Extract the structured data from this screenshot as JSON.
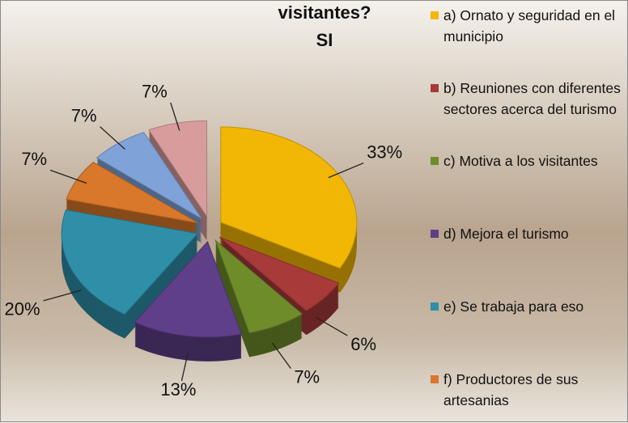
{
  "chart_data": {
    "type": "pie",
    "title": "visitantes?",
    "subtitle": "SI",
    "categories": [
      "a) Ornato y seguridad en el municipio",
      "b) Reuniones con diferentes sectores acerca del turismo",
      "c) Motiva a los visitantes",
      "d) Mejora el turismo",
      "e) Se trabaja para eso",
      "f) Productores de sus artesanias",
      null,
      null
    ],
    "values": [
      33,
      6,
      7,
      13,
      20,
      7,
      7,
      7
    ],
    "value_labels": [
      "33%",
      "6%",
      "7%",
      "13%",
      "20%",
      "7%",
      "7%",
      "7%"
    ],
    "colors": [
      "#f2b705",
      "#a83a3a",
      "#6f8c2a",
      "#5e3f88",
      "#2f8fa8",
      "#d9772a",
      "#7fa3d8",
      "#d89c9d"
    ]
  }
}
